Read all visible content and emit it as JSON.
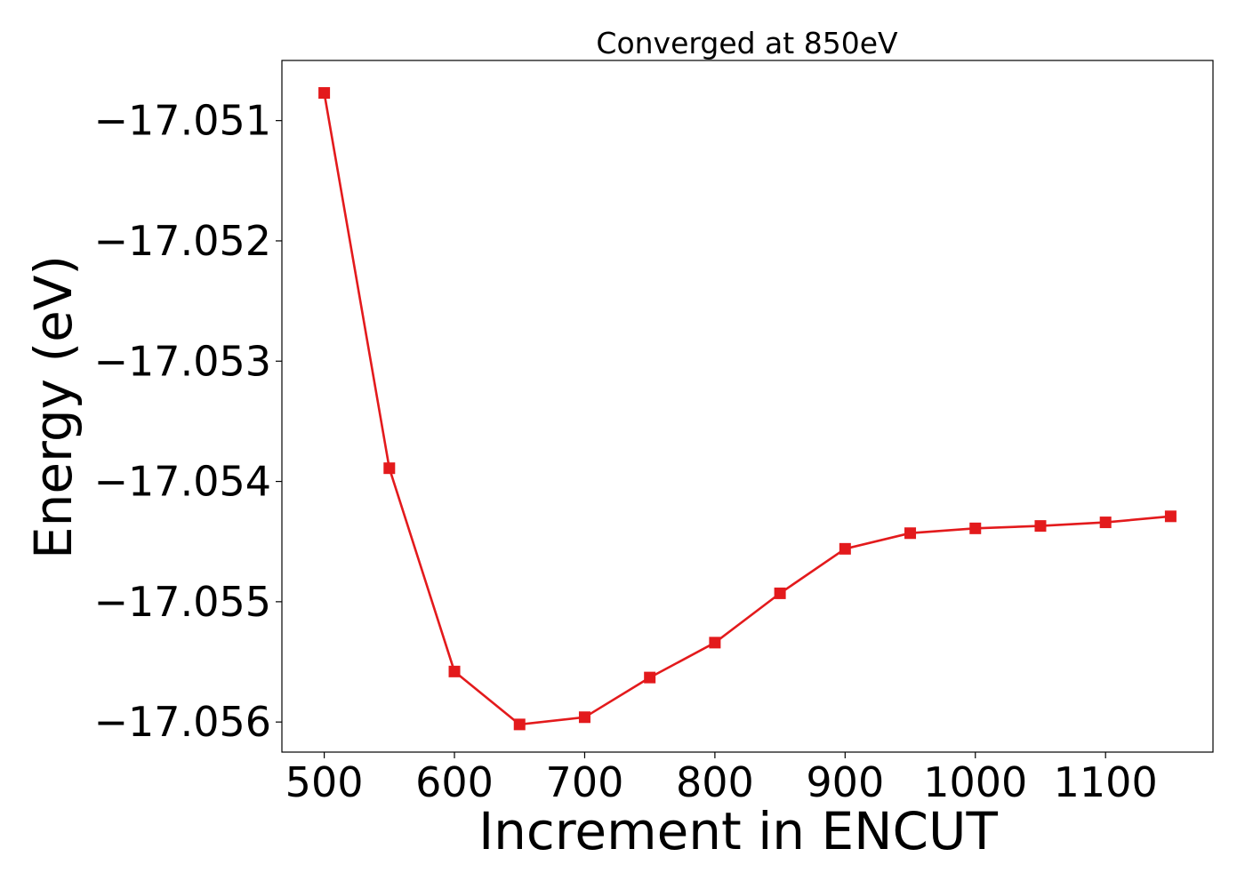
{
  "chart_data": {
    "type": "line",
    "title": "Converged at 850eV",
    "xlabel": "Increment in ENCUT",
    "ylabel": "Energy (eV)",
    "xlim": [
      467.5,
      1182.5
    ],
    "ylim": [
      -17.05625,
      -17.0505
    ],
    "xticks": [
      500,
      600,
      700,
      800,
      900,
      1000,
      1100
    ],
    "xtick_labels": [
      "500",
      "600",
      "700",
      "800",
      "900",
      "1000",
      "1100"
    ],
    "yticks": [
      -17.051,
      -17.052,
      -17.053,
      -17.054,
      -17.055,
      -17.056
    ],
    "ytick_labels": [
      "−17.051",
      "−17.052",
      "−17.053",
      "−17.054",
      "−17.055",
      "−17.056"
    ],
    "grid": false,
    "legend": "none",
    "series": [
      {
        "color": "#e31a1c",
        "marker": "square",
        "x": [
          500,
          550,
          600,
          650,
          700,
          750,
          800,
          850,
          900,
          950,
          1000,
          1050,
          1100,
          1150
        ],
        "y": [
          -17.05077,
          -17.05389,
          -17.05558,
          -17.05602,
          -17.05596,
          -17.05563,
          -17.05534,
          -17.05493,
          -17.05456,
          -17.05443,
          -17.05439,
          -17.05437,
          -17.05434,
          -17.05429
        ]
      }
    ]
  }
}
